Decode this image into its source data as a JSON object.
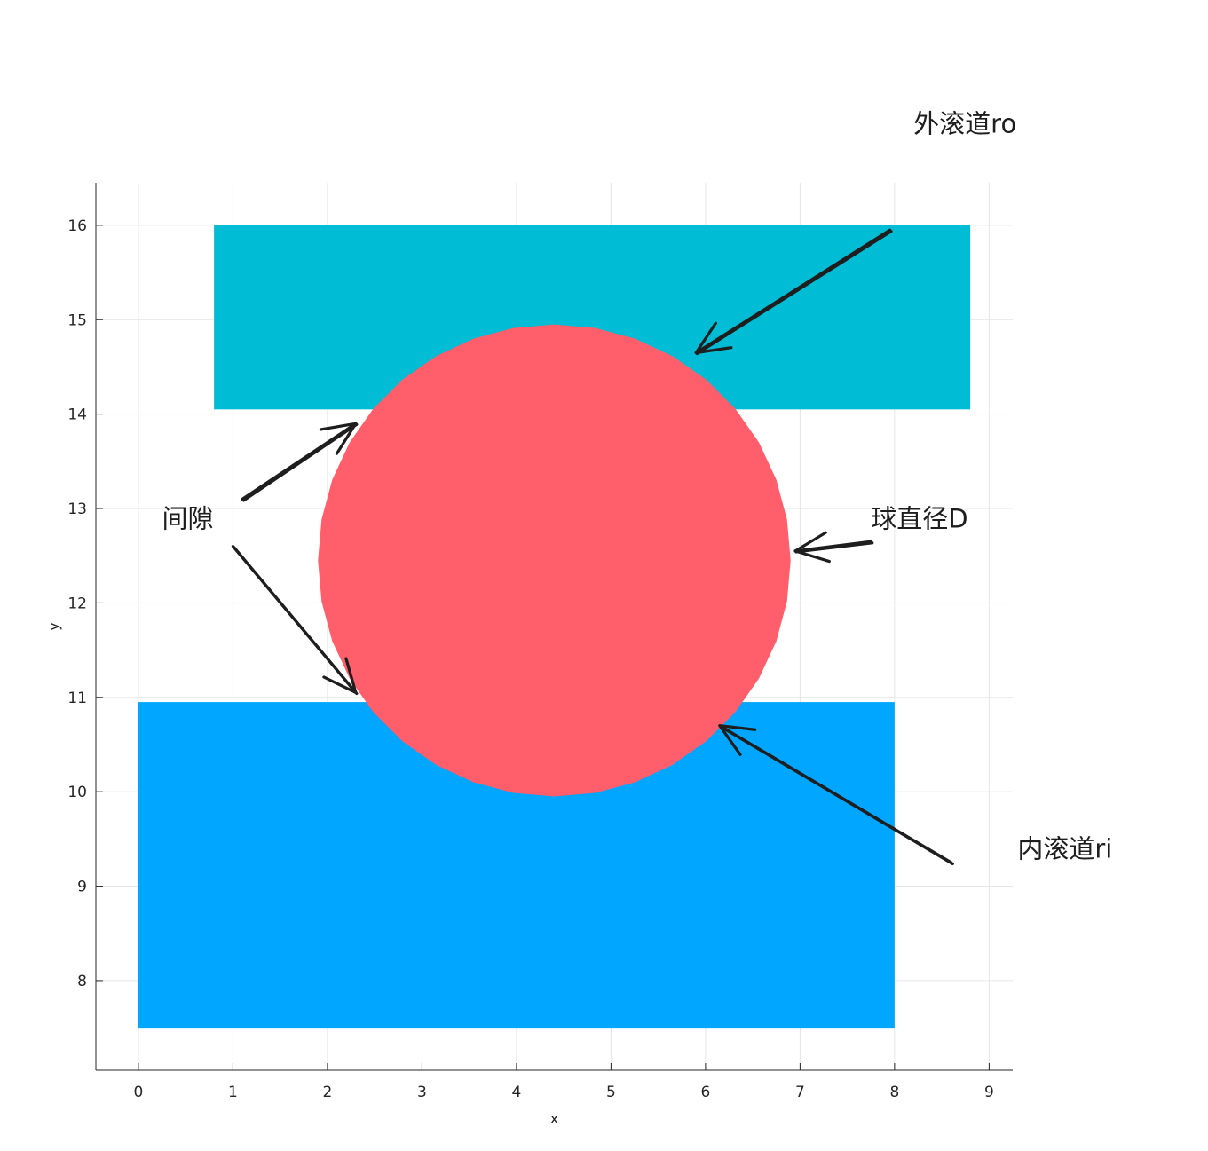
{
  "chart_data": {
    "type": "diagram",
    "xlabel": "x",
    "ylabel": "y",
    "xlim": [
      -0.45,
      9.25
    ],
    "ylim": [
      7.05,
      16.45
    ],
    "xticks": [
      0,
      1,
      2,
      3,
      4,
      5,
      6,
      7,
      8,
      9
    ],
    "yticks": [
      8,
      9,
      10,
      11,
      12,
      13,
      14,
      15,
      16
    ],
    "grid": true,
    "shapes": [
      {
        "name": "outer-raceway",
        "kind": "rect",
        "x0": 0.8,
        "x1": 8.8,
        "y0": 14.05,
        "y1": 16.0,
        "color": "#00BCD4"
      },
      {
        "name": "inner-raceway",
        "kind": "rect",
        "x0": 0.0,
        "x1": 8.0,
        "y0": 7.5,
        "y1": 10.95,
        "color": "#00A6FF"
      },
      {
        "name": "ball",
        "kind": "circle",
        "cx": 4.4,
        "cy": 12.45,
        "r": 2.5,
        "color": "#FF5E6A"
      }
    ],
    "annotations": [
      {
        "text": "外滚道ro",
        "tx": 8.2,
        "ty": 16.98,
        "from": [
          7.95,
          15.95
        ],
        "to": [
          5.9,
          14.65
        ]
      },
      {
        "text": "间隙",
        "tx": 0.25,
        "ty": 12.8,
        "from": [
          1.1,
          13.1
        ],
        "to": [
          2.3,
          13.9
        ]
      },
      {
        "text": "间隙",
        "tx": null,
        "ty": null,
        "from": [
          1.0,
          12.6
        ],
        "to": [
          2.3,
          11.05
        ]
      },
      {
        "text": "球直径D",
        "tx": 7.75,
        "ty": 12.8,
        "from": [
          7.75,
          12.65
        ],
        "to": [
          6.95,
          12.55
        ]
      },
      {
        "text": "内滚道ri",
        "tx": 9.3,
        "ty": 9.3,
        "from": [
          8.6,
          9.25
        ],
        "to": [
          6.15,
          10.7
        ]
      }
    ]
  }
}
